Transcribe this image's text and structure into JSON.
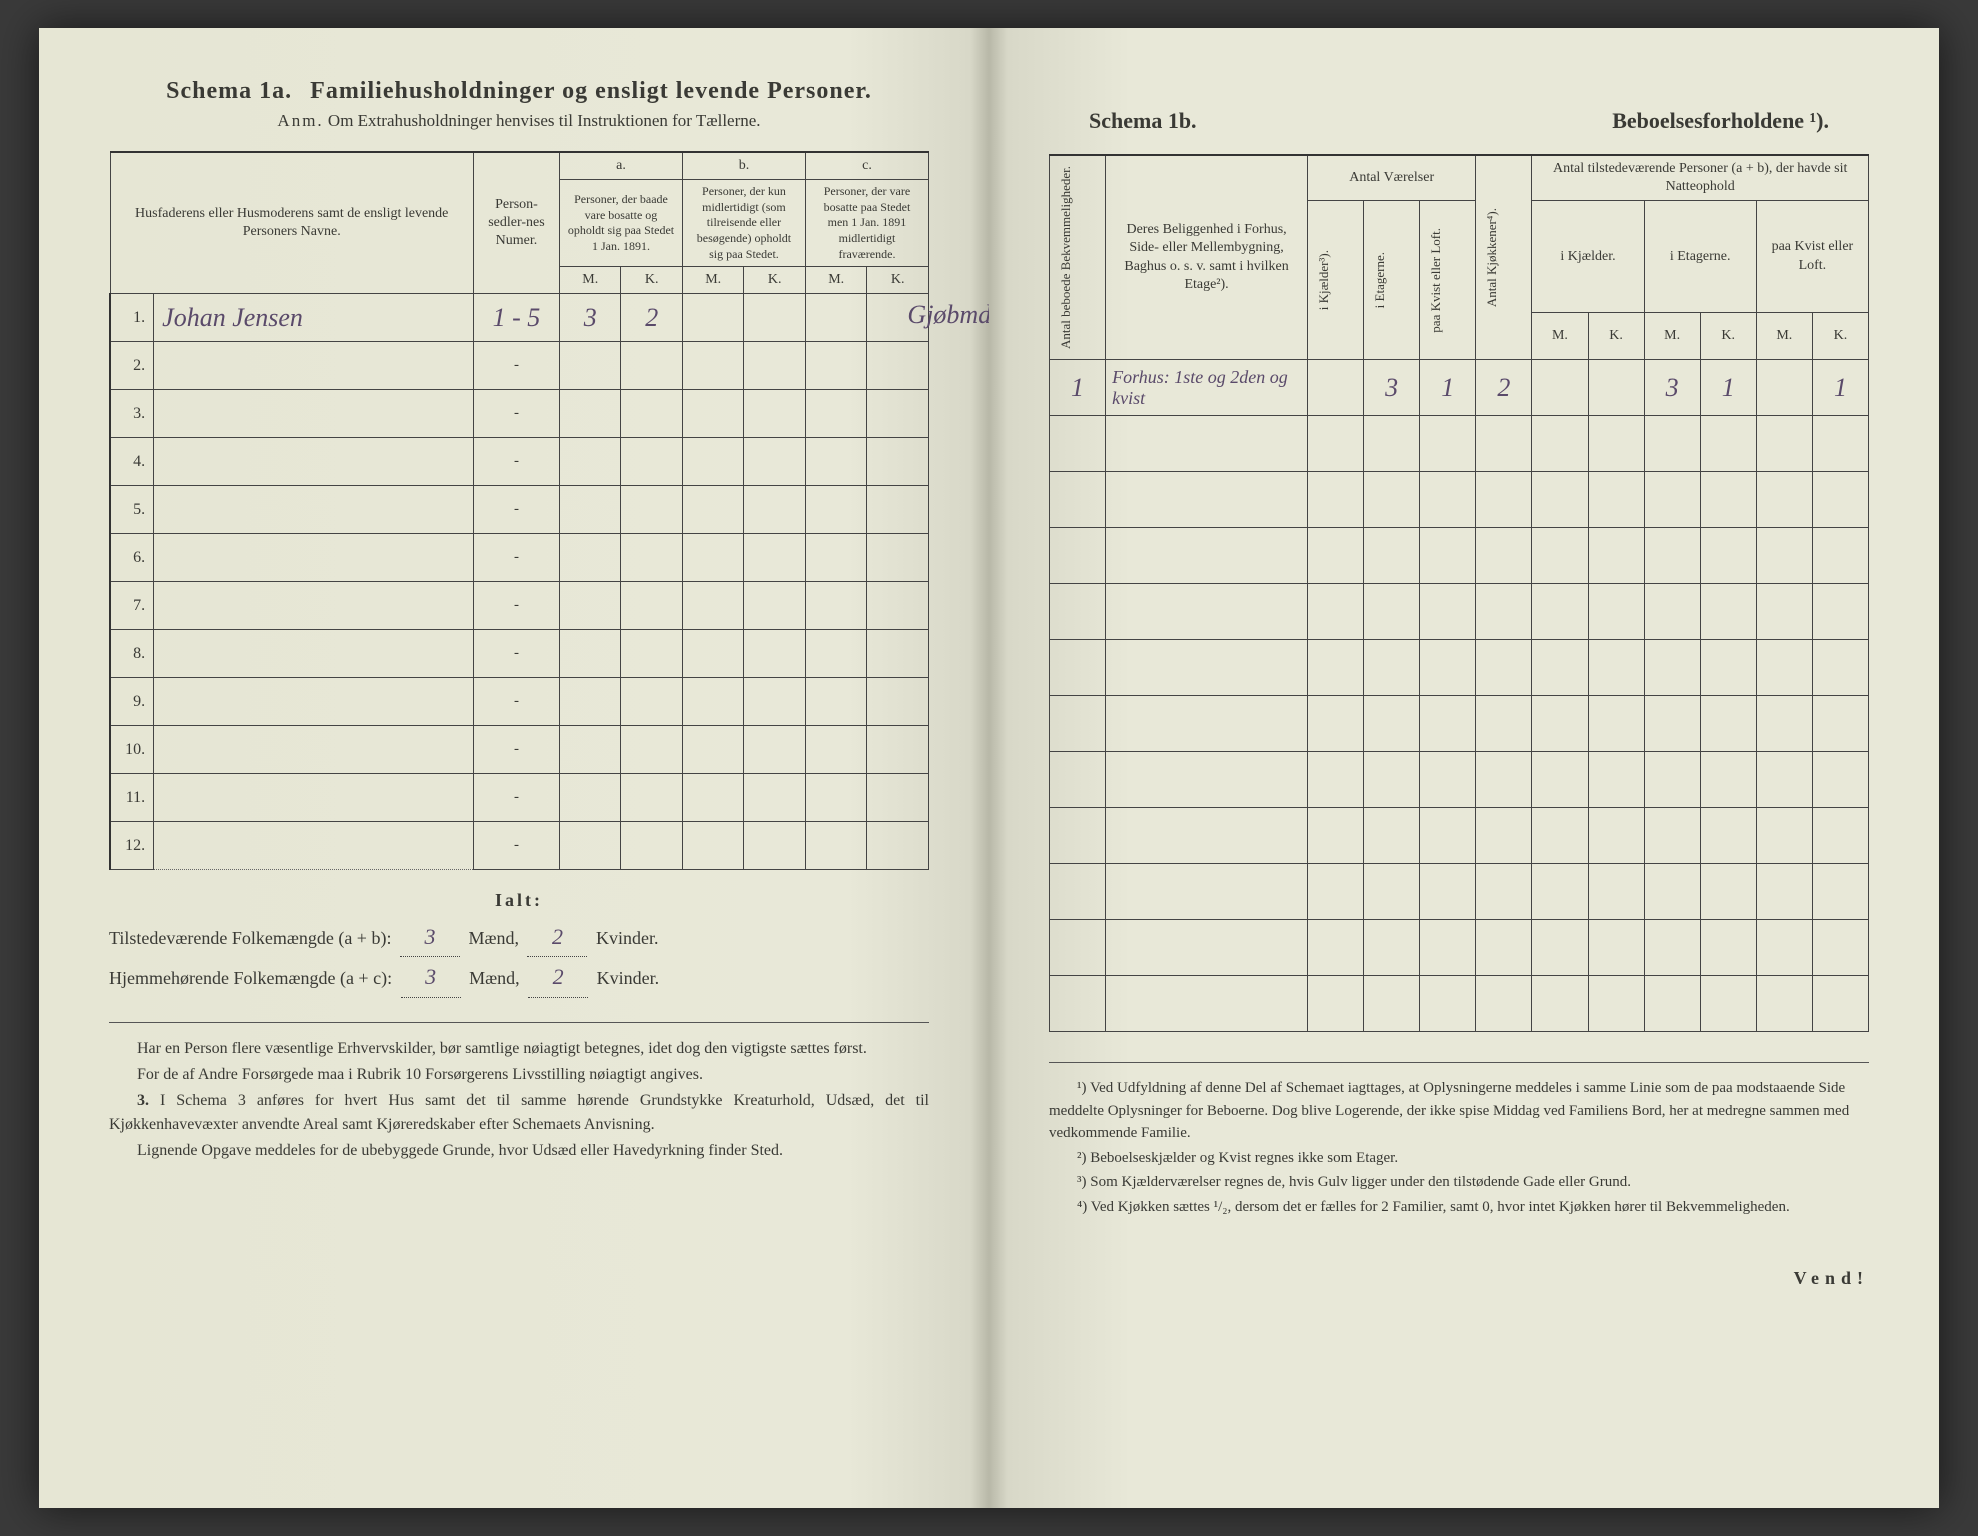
{
  "left": {
    "schema_label": "Schema 1a.",
    "title": "Familiehusholdninger og ensligt levende Personer.",
    "subtitle_prefix": "Anm.",
    "subtitle": "Om Extrahusholdninger henvises til Instruktionen for Tællerne.",
    "headers": {
      "col1": "Husfaderens eller Husmoderens samt de ensligt levende Personers Navne.",
      "col2": "Person-sedler-nes Numer.",
      "a_label": "a.",
      "a_text": "Personer, der baade vare bosatte og opholdt sig paa Stedet 1 Jan. 1891.",
      "b_label": "b.",
      "b_text": "Personer, der kun midlertidigt (som tilreisende eller besøgende) opholdt sig paa Stedet.",
      "c_label": "c.",
      "c_text": "Personer, der vare bosatte paa Stedet men 1 Jan. 1891 midlertidigt fraværende.",
      "m": "M.",
      "k": "K."
    },
    "rows": [
      {
        "n": "1.",
        "name": "Johan Jensen",
        "sedler": "1 - 5",
        "a_m": "3",
        "a_k": "2",
        "b_m": "",
        "b_k": "",
        "c_m": "",
        "c_k": "",
        "note": "Gjøbmd."
      },
      {
        "n": "2.",
        "name": "",
        "sedler": "-",
        "a_m": "",
        "a_k": "",
        "b_m": "",
        "b_k": "",
        "c_m": "",
        "c_k": "",
        "note": ""
      },
      {
        "n": "3.",
        "name": "",
        "sedler": "-",
        "a_m": "",
        "a_k": "",
        "b_m": "",
        "b_k": "",
        "c_m": "",
        "c_k": "",
        "note": ""
      },
      {
        "n": "4.",
        "name": "",
        "sedler": "-",
        "a_m": "",
        "a_k": "",
        "b_m": "",
        "b_k": "",
        "c_m": "",
        "c_k": "",
        "note": ""
      },
      {
        "n": "5.",
        "name": "",
        "sedler": "-",
        "a_m": "",
        "a_k": "",
        "b_m": "",
        "b_k": "",
        "c_m": "",
        "c_k": "",
        "note": ""
      },
      {
        "n": "6.",
        "name": "",
        "sedler": "-",
        "a_m": "",
        "a_k": "",
        "b_m": "",
        "b_k": "",
        "c_m": "",
        "c_k": "",
        "note": ""
      },
      {
        "n": "7.",
        "name": "",
        "sedler": "-",
        "a_m": "",
        "a_k": "",
        "b_m": "",
        "b_k": "",
        "c_m": "",
        "c_k": "",
        "note": ""
      },
      {
        "n": "8.",
        "name": "",
        "sedler": "-",
        "a_m": "",
        "a_k": "",
        "b_m": "",
        "b_k": "",
        "c_m": "",
        "c_k": "",
        "note": ""
      },
      {
        "n": "9.",
        "name": "",
        "sedler": "-",
        "a_m": "",
        "a_k": "",
        "b_m": "",
        "b_k": "",
        "c_m": "",
        "c_k": "",
        "note": ""
      },
      {
        "n": "10.",
        "name": "",
        "sedler": "-",
        "a_m": "",
        "a_k": "",
        "b_m": "",
        "b_k": "",
        "c_m": "",
        "c_k": "",
        "note": ""
      },
      {
        "n": "11.",
        "name": "",
        "sedler": "-",
        "a_m": "",
        "a_k": "",
        "b_m": "",
        "b_k": "",
        "c_m": "",
        "c_k": "",
        "note": ""
      },
      {
        "n": "12.",
        "name": "",
        "sedler": "-",
        "a_m": "",
        "a_k": "",
        "b_m": "",
        "b_k": "",
        "c_m": "",
        "c_k": "",
        "note": ""
      }
    ],
    "totals": {
      "ialt": "Ialt:",
      "line1_label": "Tilstedeværende Folkemængde (a + b):",
      "line1_m": "3",
      "line1_k": "2",
      "line2_label": "Hjemmehørende Folkemængde (a + c):",
      "line2_m": "3",
      "line2_k": "2",
      "maend": "Mænd,",
      "kvinder": "Kvinder."
    },
    "body": {
      "p1": "Har en Person flere væsentlige Erhvervskilder, bør samtlige nøiagtigt betegnes, idet dog den vigtigste sættes først.",
      "p2": "For de af Andre Forsørgede maa i Rubrik 10 Forsørgerens Livsstilling nøiagtigt angives.",
      "p3_num": "3.",
      "p3": "I Schema 3 anføres for hvert Hus samt det til samme hørende Grundstykke Kreaturhold, Udsæd, det til Kjøkkenhavevæxter anvendte Areal samt Kjøreredskaber efter Schemaets Anvisning.",
      "p4": "Lignende Opgave meddeles for de ubebyggede Grunde, hvor Udsæd eller Havedyrkning finder Sted."
    }
  },
  "right": {
    "schema_label": "Schema 1b.",
    "title": "Beboelsesforholdene ¹).",
    "headers": {
      "col1": "Antal beboede Bekvemmeligheder.",
      "col2": "Deres Beliggenhed i Forhus, Side- eller Mellembygning, Baghus o. s. v. samt i hvilken Etage²).",
      "vaerelser": "Antal Værelser",
      "v1": "i Kjælder³).",
      "v2": "i Etagerne.",
      "v3": "paa Kvist eller Loft.",
      "kjok": "Antal Kjøkkener⁴).",
      "personer": "Antal tilstedeværende Personer (a + b), der havde sit Natteophold",
      "p1": "i Kjælder.",
      "p2": "i Etagerne.",
      "p3": "paa Kvist eller Loft.",
      "m": "M.",
      "k": "K."
    },
    "rows": [
      {
        "n": "1",
        "loc": "Forhus: 1ste og 2den og kvist",
        "v1": "",
        "v2": "3",
        "v3": "1",
        "kj": "2",
        "km": "",
        "kk": "",
        "em": "3",
        "ek": "1",
        "lm": "",
        "lk": "1"
      },
      {
        "n": "",
        "loc": "",
        "v1": "",
        "v2": "",
        "v3": "",
        "kj": "",
        "km": "",
        "kk": "",
        "em": "",
        "ek": "",
        "lm": "",
        "lk": ""
      },
      {
        "n": "",
        "loc": "",
        "v1": "",
        "v2": "",
        "v3": "",
        "kj": "",
        "km": "",
        "kk": "",
        "em": "",
        "ek": "",
        "lm": "",
        "lk": ""
      },
      {
        "n": "",
        "loc": "",
        "v1": "",
        "v2": "",
        "v3": "",
        "kj": "",
        "km": "",
        "kk": "",
        "em": "",
        "ek": "",
        "lm": "",
        "lk": ""
      },
      {
        "n": "",
        "loc": "",
        "v1": "",
        "v2": "",
        "v3": "",
        "kj": "",
        "km": "",
        "kk": "",
        "em": "",
        "ek": "",
        "lm": "",
        "lk": ""
      },
      {
        "n": "",
        "loc": "",
        "v1": "",
        "v2": "",
        "v3": "",
        "kj": "",
        "km": "",
        "kk": "",
        "em": "",
        "ek": "",
        "lm": "",
        "lk": ""
      },
      {
        "n": "",
        "loc": "",
        "v1": "",
        "v2": "",
        "v3": "",
        "kj": "",
        "km": "",
        "kk": "",
        "em": "",
        "ek": "",
        "lm": "",
        "lk": ""
      },
      {
        "n": "",
        "loc": "",
        "v1": "",
        "v2": "",
        "v3": "",
        "kj": "",
        "km": "",
        "kk": "",
        "em": "",
        "ek": "",
        "lm": "",
        "lk": ""
      },
      {
        "n": "",
        "loc": "",
        "v1": "",
        "v2": "",
        "v3": "",
        "kj": "",
        "km": "",
        "kk": "",
        "em": "",
        "ek": "",
        "lm": "",
        "lk": ""
      },
      {
        "n": "",
        "loc": "",
        "v1": "",
        "v2": "",
        "v3": "",
        "kj": "",
        "km": "",
        "kk": "",
        "em": "",
        "ek": "",
        "lm": "",
        "lk": ""
      },
      {
        "n": "",
        "loc": "",
        "v1": "",
        "v2": "",
        "v3": "",
        "kj": "",
        "km": "",
        "kk": "",
        "em": "",
        "ek": "",
        "lm": "",
        "lk": ""
      },
      {
        "n": "",
        "loc": "",
        "v1": "",
        "v2": "",
        "v3": "",
        "kj": "",
        "km": "",
        "kk": "",
        "em": "",
        "ek": "",
        "lm": "",
        "lk": ""
      }
    ],
    "footnotes": {
      "f1": "¹) Ved Udfyldning af denne Del af Schemaet iagttages, at Oplysningerne meddeles i samme Linie som de paa modstaaende Side meddelte Oplysninger for Beboerne. Dog blive Logerende, der ikke spise Middag ved Familiens Bord, her at medregne sammen med vedkommende Familie.",
      "f2": "²) Beboelseskjælder og Kvist regnes ikke som Etager.",
      "f3": "³) Som Kjælderværelser regnes de, hvis Gulv ligger under den tilstødende Gade eller Grund.",
      "f4": "⁴) Ved Kjøkken sættes ¹/₂, dersom det er fælles for 2 Familier, samt 0, hvor intet Kjøkken hører til Bekvemmeligheden."
    },
    "vend": "Vend!"
  }
}
